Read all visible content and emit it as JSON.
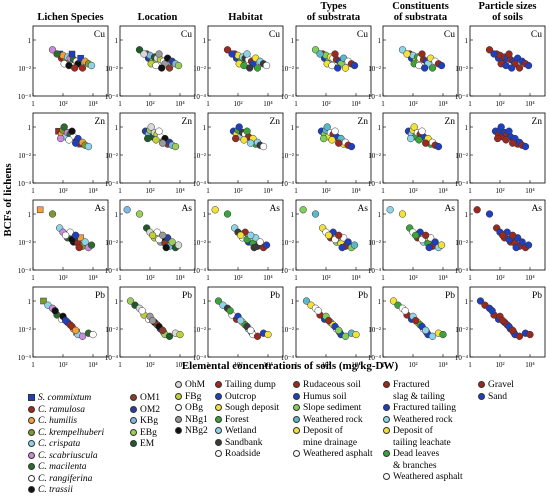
{
  "figure": {
    "column_titles": [
      [
        "Lichen Species"
      ],
      [
        "Location"
      ],
      [
        "Habitat"
      ],
      [
        "Types",
        "of substrata"
      ],
      [
        "Constituents",
        "of substrata"
      ],
      [
        "Particle sizes",
        "of soils"
      ]
    ],
    "row_elements": [
      "Cu",
      "Zn",
      "As",
      "Pb"
    ],
    "ylabel": "BCFs of lichens",
    "xlabel": "Elemental concentrations of soils (mg/kg-DW)",
    "x_tick_labels": [
      "1",
      "10²",
      "10⁴"
    ],
    "y_tick_labels": [
      "1",
      "10⁻²",
      "10⁻⁴"
    ]
  },
  "legend": {
    "species": [
      {
        "label": "S. commixtum",
        "color": "#1f3fbf",
        "shape": "square"
      },
      {
        "label": "C. ramulosa",
        "color": "#a0291f",
        "shape": "circle"
      },
      {
        "label": "C. humilis",
        "color": "#f2a03a",
        "shape": "circle"
      },
      {
        "label": "C. krempelhuberi",
        "color": "#7a9a2e",
        "shape": "circle"
      },
      {
        "label": "C. crispata",
        "color": "#8fd3e8",
        "shape": "circle"
      },
      {
        "label": "C. scabriuscula",
        "color": "#c98bd9",
        "shape": "circle"
      },
      {
        "label": "C. macilenta",
        "color": "#2e6b2e",
        "shape": "circle"
      },
      {
        "label": "C. rangiferina",
        "color": "#ffffff",
        "shape": "circle"
      },
      {
        "label": "C. trassii",
        "color": "#111111",
        "shape": "circle"
      }
    ],
    "location_a": [
      {
        "label": "OM1",
        "color": "#8b3a2b"
      },
      {
        "label": "OM2",
        "color": "#2a3f9a"
      },
      {
        "label": "KBg",
        "color": "#7fb8e0"
      },
      {
        "label": "EBg",
        "color": "#9acd5a"
      },
      {
        "label": "EM",
        "color": "#1f5a2a"
      }
    ],
    "location_b": [
      {
        "label": "OhM",
        "color": "#d8d8d8"
      },
      {
        "label": "FBg",
        "color": "#bfcf3a"
      },
      {
        "label": "OBg",
        "color": "#ffffff"
      },
      {
        "label": "NBg1",
        "color": "#9a9a9a"
      },
      {
        "label": "NBg2",
        "color": "#111111"
      }
    ],
    "habitat": [
      {
        "label": "Tailing dump",
        "color": "#9a2a1f"
      },
      {
        "label": "Outcrop",
        "color": "#1f3fbf"
      },
      {
        "label": "Sough deposit",
        "color": "#f2e13a"
      },
      {
        "label": "Forest",
        "color": "#3aa33a"
      },
      {
        "label": "Wetland",
        "color": "#8fd3e8"
      },
      {
        "label": "Sandbank",
        "color": "#3a3a3a"
      },
      {
        "label": "Roadside",
        "color": "#ffffff"
      }
    ],
    "substrata_types": [
      {
        "label": "Rudaceous soil",
        "color": "#9a2a1f"
      },
      {
        "label": "Humus soil",
        "color": "#1f3fbf"
      },
      {
        "label": "Slope sediment",
        "color": "#7fcf5a"
      },
      {
        "label": "Weathered rock",
        "color": "#5ab8c8"
      },
      {
        "label": "Deposit of",
        "label2": "mine drainage",
        "color": "#f2e13a"
      },
      {
        "label": "Weathered asphalt",
        "color": "#ffffff"
      }
    ],
    "substrata_constituents": [
      {
        "label": "Fractured",
        "label2": "slag & tailing",
        "color": "#9a2a1f"
      },
      {
        "label": "Fractured tailing",
        "color": "#1f3fbf"
      },
      {
        "label": "Weathered rock",
        "color": "#8fd3e8"
      },
      {
        "label": "Deposit of",
        "label2": "tailing leachate",
        "color": "#f2e13a"
      },
      {
        "label": "Dead leaves",
        "label2": "& branches",
        "color": "#3aa33a"
      },
      {
        "label": "Weathered asphalt",
        "color": "#ffffff"
      }
    ],
    "particle_sizes": [
      {
        "label": "Gravel",
        "color": "#9a2a1f"
      },
      {
        "label": "Sand",
        "color": "#1f3fbf"
      }
    ]
  },
  "chart_data": {
    "type": "scatter",
    "x_scale": "log",
    "y_scale": "log",
    "xlim": [
      1,
      100000
    ],
    "ylim": [
      0.0001,
      10
    ],
    "rows": [
      {
        "element": "Cu",
        "points": [
          [
            60,
            0.1
          ],
          [
            80,
            0.05
          ],
          [
            100,
            0.08
          ],
          [
            150,
            0.03
          ],
          [
            200,
            0.06
          ],
          [
            300,
            0.05
          ],
          [
            500,
            0.04
          ],
          [
            800,
            0.03
          ],
          [
            1000,
            0.02
          ],
          [
            1500,
            0.05
          ],
          [
            2000,
            0.01
          ],
          [
            3000,
            0.03
          ],
          [
            5000,
            0.02
          ],
          [
            8000,
            0.015
          ],
          [
            20,
            0.2
          ],
          [
            40,
            0.1
          ],
          [
            120,
            0.02
          ],
          [
            250,
            0.015
          ],
          [
            400,
            0.1
          ],
          [
            600,
            0.01
          ]
        ]
      },
      {
        "element": "Zn",
        "points": [
          [
            50,
            0.5
          ],
          [
            80,
            0.3
          ],
          [
            100,
            0.6
          ],
          [
            150,
            0.2
          ],
          [
            200,
            0.4
          ],
          [
            300,
            0.3
          ],
          [
            500,
            0.2
          ],
          [
            800,
            0.1
          ],
          [
            1000,
            0.15
          ],
          [
            1500,
            0.06
          ],
          [
            2000,
            0.08
          ],
          [
            3000,
            0.05
          ],
          [
            5000,
            0.04
          ],
          [
            70,
            0.15
          ],
          [
            120,
            1
          ],
          [
            250,
            0.12
          ],
          [
            400,
            0.5
          ],
          [
            700,
            0.07
          ]
        ]
      },
      {
        "element": "As",
        "points": [
          [
            3,
            2
          ],
          [
            20,
            1
          ],
          [
            60,
            0.1
          ],
          [
            100,
            0.05
          ],
          [
            200,
            0.02
          ],
          [
            300,
            0.05
          ],
          [
            500,
            0.01
          ],
          [
            800,
            0.02
          ],
          [
            1000,
            0.008
          ],
          [
            1500,
            0.02
          ],
          [
            2000,
            0.005
          ],
          [
            3000,
            0.01
          ],
          [
            5000,
            0.004
          ],
          [
            8000,
            0.006
          ],
          [
            150,
            0.03
          ],
          [
            400,
            0.015
          ],
          [
            700,
            0.03
          ],
          [
            1200,
            0.004
          ]
        ]
      },
      {
        "element": "Pb",
        "points": [
          [
            5,
            1
          ],
          [
            10,
            0.5
          ],
          [
            20,
            0.3
          ],
          [
            40,
            0.1
          ],
          [
            80,
            0.05
          ],
          [
            100,
            0.08
          ],
          [
            200,
            0.03
          ],
          [
            300,
            0.02
          ],
          [
            500,
            0.01
          ],
          [
            800,
            0.006
          ],
          [
            1000,
            0.004
          ],
          [
            2000,
            0.003
          ],
          [
            5000,
            0.005
          ],
          [
            10000,
            0.004
          ],
          [
            30,
            0.2
          ],
          [
            150,
            0.04
          ],
          [
            400,
            0.015
          ],
          [
            700,
            0.008
          ]
        ]
      }
    ]
  }
}
